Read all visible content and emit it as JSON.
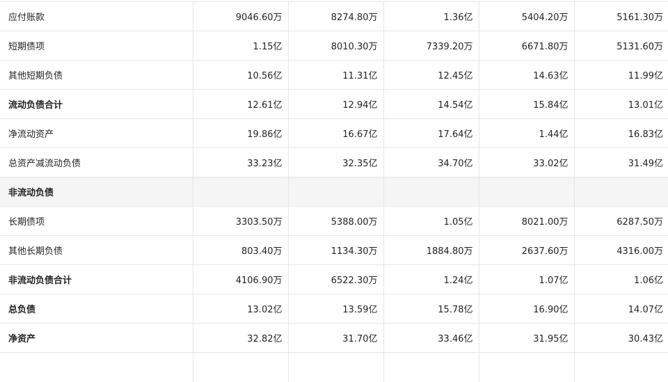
{
  "rows": [
    {
      "label": "应付账款",
      "bold": false,
      "section": false,
      "values": [
        "9046.60万",
        "8274.80万",
        "1.36亿",
        "5404.20万",
        "5161.30万"
      ]
    },
    {
      "label": "短期债项",
      "bold": false,
      "section": false,
      "values": [
        "1.15亿",
        "8010.30万",
        "7339.20万",
        "6671.80万",
        "5131.60万"
      ]
    },
    {
      "label": "其他短期负债",
      "bold": false,
      "section": false,
      "values": [
        "10.56亿",
        "11.31亿",
        "12.45亿",
        "14.63亿",
        "11.99亿"
      ]
    },
    {
      "label": "流动负债合计",
      "bold": true,
      "section": false,
      "values": [
        "12.61亿",
        "12.94亿",
        "14.54亿",
        "15.84亿",
        "13.01亿"
      ]
    },
    {
      "label": "净流动资产",
      "bold": false,
      "section": false,
      "values": [
        "19.86亿",
        "16.67亿",
        "17.64亿",
        "1.44亿",
        "16.83亿"
      ]
    },
    {
      "label": "总资产减流动负债",
      "bold": false,
      "section": false,
      "values": [
        "33.23亿",
        "32.35亿",
        "34.70亿",
        "33.02亿",
        "31.49亿"
      ]
    },
    {
      "label": "非流动负债",
      "bold": true,
      "section": true,
      "values": [
        "",
        "",
        "",
        "",
        ""
      ]
    },
    {
      "label": "长期债项",
      "bold": false,
      "section": false,
      "values": [
        "3303.50万",
        "5388.00万",
        "1.05亿",
        "8021.00万",
        "6287.50万"
      ]
    },
    {
      "label": "其他长期负债",
      "bold": false,
      "section": false,
      "values": [
        "803.40万",
        "1134.30万",
        "1884.80万",
        "2637.60万",
        "4316.00万"
      ]
    },
    {
      "label": "非流动负债合计",
      "bold": true,
      "section": false,
      "values": [
        "4106.90万",
        "6522.30万",
        "1.24亿",
        "1.07亿",
        "1.06亿"
      ]
    },
    {
      "label": "总负债",
      "bold": true,
      "section": false,
      "values": [
        "13.02亿",
        "13.59亿",
        "15.78亿",
        "16.90亿",
        "14.07亿"
      ]
    },
    {
      "label": "净资产",
      "bold": true,
      "section": false,
      "values": [
        "32.82亿",
        "31.70亿",
        "33.46亿",
        "31.95亿",
        "30.43亿"
      ]
    },
    {
      "label": "",
      "bold": false,
      "section": false,
      "values": [
        "",
        "",
        "",
        "",
        ""
      ]
    }
  ]
}
